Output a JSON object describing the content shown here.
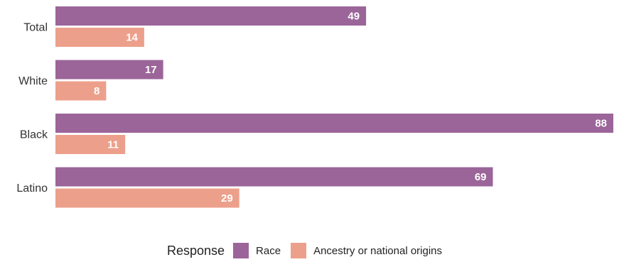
{
  "chart_data": {
    "type": "bar",
    "orientation": "horizontal",
    "categories": [
      "Total",
      "White",
      "Black",
      "Latino"
    ],
    "series": [
      {
        "name": "Race",
        "values": [
          49,
          17,
          88,
          69
        ],
        "color": "#9b6599"
      },
      {
        "name": "Ancestry or national origins",
        "values": [
          14,
          8,
          11,
          29
        ],
        "color": "#eca08b"
      }
    ],
    "xlim": [
      0,
      88
    ],
    "grid": false,
    "legend_title": "Response",
    "legend_position": "bottom"
  }
}
